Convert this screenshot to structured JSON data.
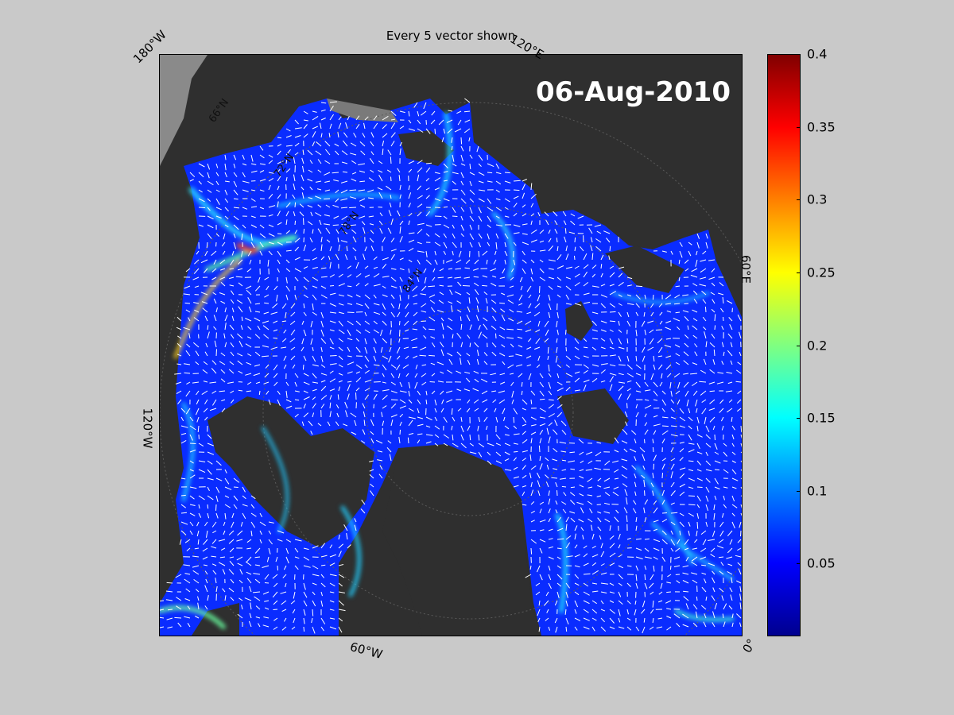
{
  "figure": {
    "title": "Every 5 vector shown",
    "date": "06-Aug-2010"
  },
  "map": {
    "projection": "polar stereographic (Arctic)",
    "ocean_colormap": "jet",
    "land_color": "#303030",
    "background_color": "#c9c9c9",
    "vector_color": "#ffffff",
    "longitude_labels": {
      "top_left": "180°W",
      "top_right": "120°E",
      "right": "60°E",
      "left": "120°W",
      "bottom": "60°W",
      "bottom_right": "0°"
    },
    "latitude_labels": [
      "66°N",
      "72°N",
      "78°N",
      "84°N"
    ]
  },
  "colorbar": {
    "colormap": "jet",
    "min": 0,
    "max": 0.4,
    "ticks": [
      "0.05",
      "0.1",
      "0.15",
      "0.2",
      "0.25",
      "0.3",
      "0.35",
      "0.4"
    ]
  }
}
